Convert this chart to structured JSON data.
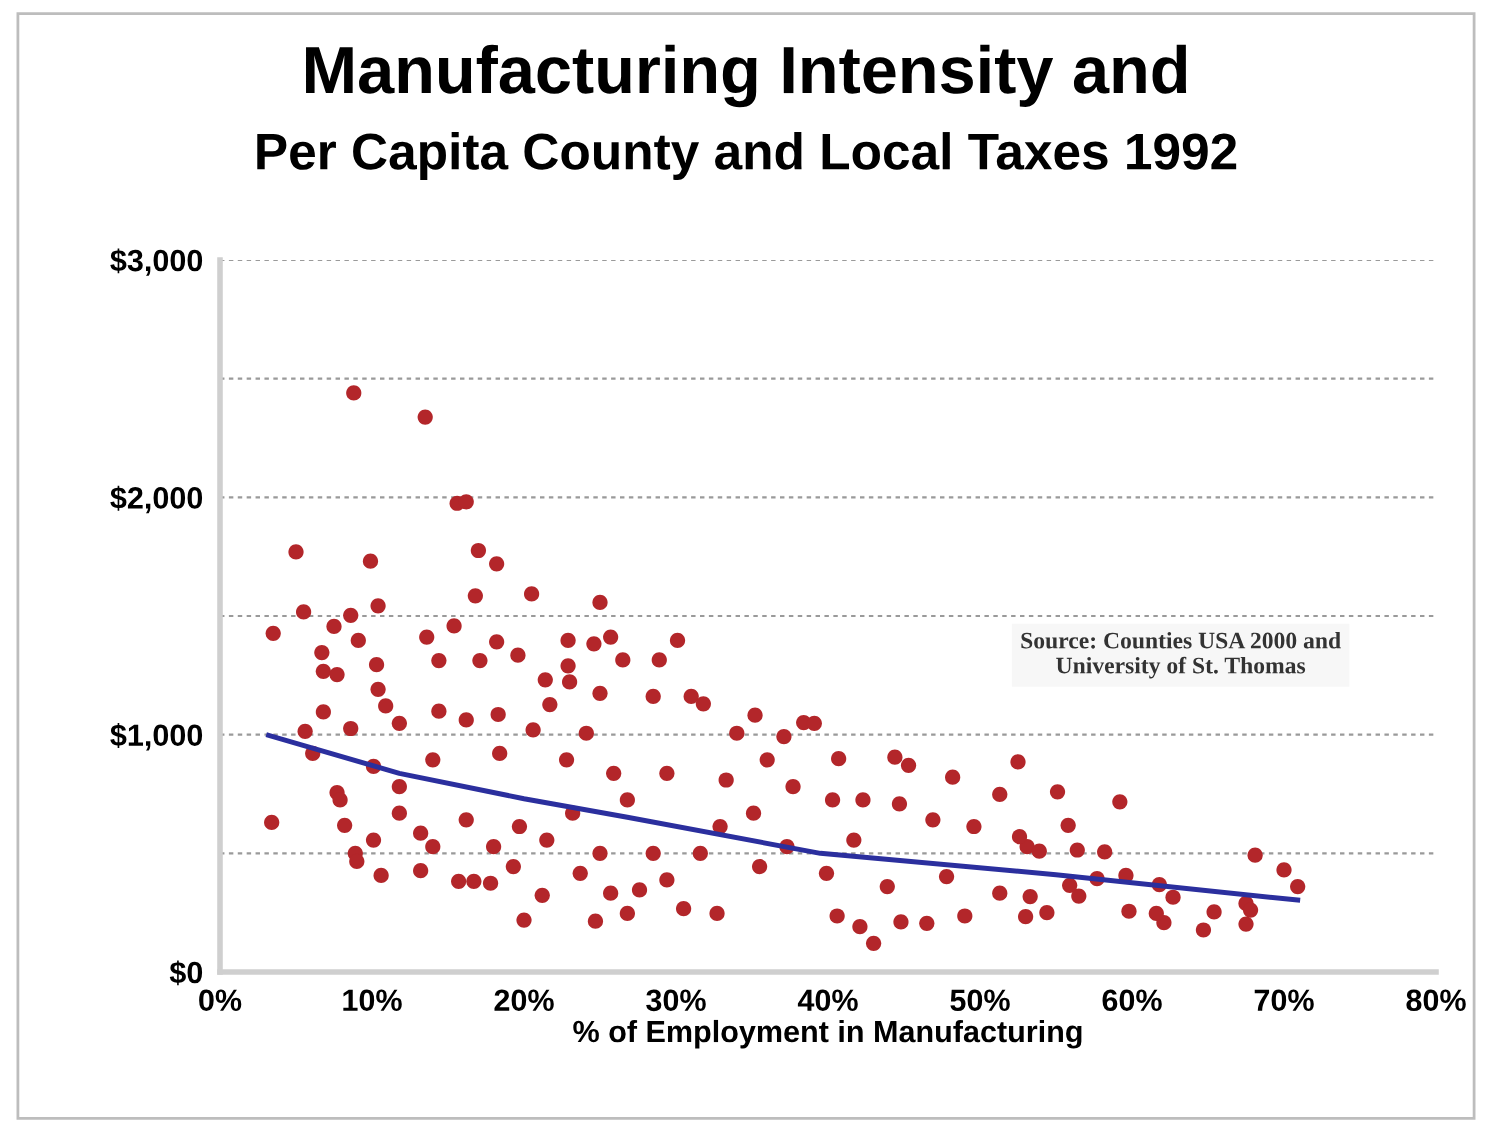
{
  "chart_data": {
    "type": "scatter",
    "title": "Manufacturing Intensity and\nPer Capita County and Local Taxes 1992",
    "xlabel": "% of Employment in Manufacturing",
    "annotations": [
      "Source: Counties USA 2000 and\nUniversity of St. Thomas"
    ],
    "xlim": [
      0,
      80
    ],
    "xticks": [
      {
        "value": 0,
        "label": "0%"
      },
      {
        "value": 10,
        "label": "10%"
      },
      {
        "value": 20,
        "label": "20%"
      },
      {
        "value": 30,
        "label": "30%"
      },
      {
        "value": 40,
        "label": "40%"
      },
      {
        "value": 50,
        "label": "50%"
      },
      {
        "value": 60,
        "label": "60%"
      },
      {
        "value": 70,
        "label": "70%"
      },
      {
        "value": 80,
        "label": "80%"
      }
    ],
    "ylim": [
      0,
      3000
    ],
    "yticks": [
      {
        "value": 0,
        "label": "$0"
      },
      {
        "value": 500,
        "label": null
      },
      {
        "value": 1000,
        "label": "$1,000"
      },
      {
        "value": 1500,
        "label": null
      },
      {
        "value": 2000,
        "label": "$2,000"
      },
      {
        "value": 2500,
        "label": null
      },
      {
        "value": 3000,
        "label": "$3,000"
      }
    ],
    "grid": "y",
    "legend": false,
    "series": [
      {
        "marker": "circle",
        "color": "#b3262a",
        "x": [
          8.8,
          13.5,
          15.6,
          16.2,
          5.0,
          9.9,
          17.0,
          18.2,
          16.8,
          20.5,
          25.0,
          5.5,
          8.6,
          10.4,
          15.4,
          3.5,
          7.5,
          9.1,
          13.6,
          18.2,
          6.7,
          10.3,
          6.8,
          7.7,
          14.4,
          17.1,
          19.6,
          22.9,
          24.6,
          25.7,
          26.5,
          22.9,
          10.4,
          21.4,
          23.0,
          25.0,
          6.8,
          10.9,
          14.4,
          18.3,
          21.7,
          3.4,
          7.7,
          8.2,
          8.9,
          10.6,
          9.0,
          11.8,
          13.2,
          15.7,
          16.7,
          17.8,
          20.0,
          21.2,
          24.7,
          26.8,
          25.7,
          5.6,
          8.6,
          11.8,
          16.2,
          20.6,
          24.1,
          6.1,
          10.1,
          14.0,
          18.4,
          22.8,
          25.9,
          7.9,
          11.8,
          16.2,
          19.7,
          23.2,
          26.8,
          10.1,
          14.0,
          18.0,
          21.5,
          25.0,
          13.2,
          19.3,
          23.7,
          30.1,
          28.9,
          28.5,
          31.0,
          31.8,
          35.2,
          38.4,
          39.1,
          34.0,
          37.1,
          40.7,
          44.4,
          45.3,
          48.2,
          52.5,
          51.3,
          44.7,
          42.3,
          40.3,
          33.3,
          29.4,
          32.9,
          37.3,
          41.7,
          46.9,
          49.6,
          53.1,
          35.5,
          39.9,
          43.9,
          47.8,
          51.3,
          53.3,
          42.1,
          43.0,
          44.8,
          46.5,
          49.0,
          40.6,
          30.5,
          32.7,
          27.6,
          29.4,
          31.6,
          28.5,
          35.1,
          37.7,
          36.0,
          55.1,
          59.2,
          55.8,
          58.2,
          68.1,
          70.0,
          70.9,
          67.5,
          67.8,
          67.5,
          64.7,
          65.4,
          62.1,
          61.6,
          62.7,
          61.8,
          59.8,
          59.6,
          57.7,
          56.5,
          54.4,
          53.0,
          56.4,
          53.9,
          52.6,
          55.9
        ],
        "values": [
          2440,
          2338,
          1975,
          1981,
          1770,
          1731,
          1776,
          1720,
          1585,
          1593,
          1557,
          1517,
          1503,
          1543,
          1458,
          1427,
          1456,
          1397,
          1411,
          1391,
          1346,
          1295,
          1267,
          1253,
          1312,
          1312,
          1335,
          1397,
          1383,
          1411,
          1315,
          1290,
          1191,
          1231,
          1222,
          1174,
          1096,
          1121,
          1099,
          1085,
          1127,
          630,
          756,
          618,
          500,
          407,
          466,
          781,
          585,
          382,
          382,
          374,
          219,
          323,
          214,
          247,
          332,
          1014,
          1026,
          1048,
          1062,
          1020,
          1006,
          921,
          866,
          894,
          921,
          894,
          837,
          725,
          669,
          641,
          613,
          669,
          725,
          556,
          528,
          528,
          556,
          500,
          427,
          444,
          416,
          1397,
          1315,
          1161,
          1161,
          1130,
          1082,
          1051,
          1048,
          1006,
          992,
          899,
          905,
          871,
          821,
          885,
          748,
          708,
          725,
          725,
          809,
          837,
          613,
          528,
          556,
          641,
          613,
          528,
          444,
          416,
          360,
          402,
          332,
          318,
          191,
          121,
          211,
          205,
          236,
          236,
          267,
          247,
          346,
          388,
          500,
          500,
          669,
          781,
          894,
          759,
          717,
          618,
          506,
          492,
          430,
          360,
          289,
          261,
          202,
          177,
          253,
          208,
          247,
          315,
          368,
          256,
          407,
          393,
          320,
          250,
          233,
          514,
          509,
          570,
          365
        ]
      },
      {
        "type": "line",
        "marker": "none",
        "color": "#2b2f9e",
        "x": [
          3.2,
          11.8,
          20,
          26.8,
          39.5,
          55,
          70.9
        ],
        "values": [
          997,
          837,
          730,
          652,
          500,
          410,
          303
        ]
      }
    ]
  }
}
